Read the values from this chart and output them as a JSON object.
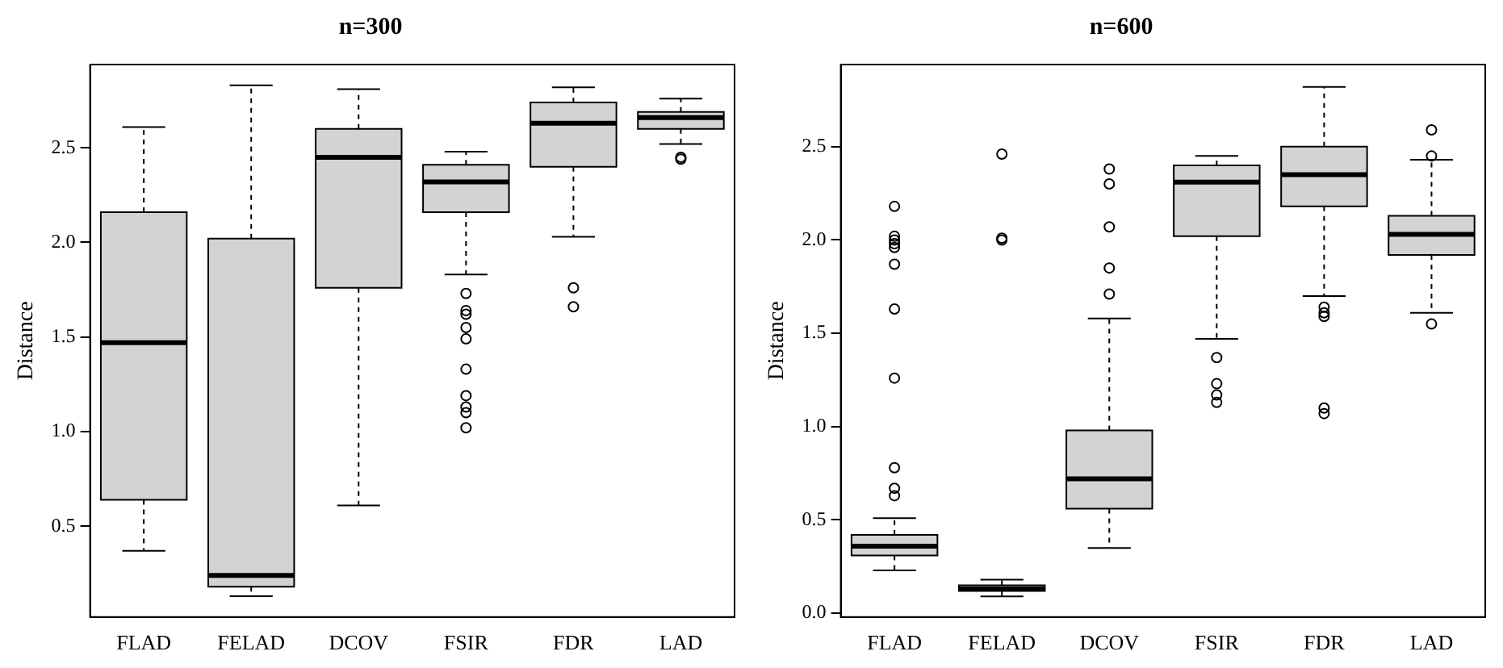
{
  "chart_data": [
    {
      "type": "box",
      "title": "n=300",
      "ylabel": "Distance",
      "categories": [
        "FLAD",
        "FELAD",
        "DCOV",
        "FSIR",
        "FDR",
        "LAD"
      ],
      "color": "#d3d3d3",
      "grid": false,
      "legend": false,
      "ylim": [
        0.02,
        2.94
      ],
      "yticks": [
        0.5,
        {
          "value": 1,
          "label": "1.0"
        },
        1.5,
        {
          "value": 2,
          "label": "2.0"
        },
        2.5
      ],
      "boxes": [
        {
          "low": 0.37,
          "q1": 0.64,
          "median": 1.47,
          "q3": 2.16,
          "high": 2.61
        },
        {
          "low": 0.13,
          "q1": 0.18,
          "median": 0.24,
          "q3": 2.02,
          "high": 2.83
        },
        {
          "low": 0.61,
          "q1": 1.76,
          "median": 2.45,
          "q3": 2.6,
          "high": 2.81
        },
        {
          "low": 1.83,
          "q1": 2.16,
          "median": 2.32,
          "q3": 2.41,
          "high": 2.48,
          "outliers": [
            1.73,
            1.64,
            1.62,
            1.55,
            1.49,
            1.33,
            1.19,
            1.13,
            1.1,
            1.02
          ]
        },
        {
          "low": 2.03,
          "q1": 2.4,
          "median": 2.63,
          "q3": 2.74,
          "high": 2.82,
          "outliers": [
            1.76,
            1.66
          ]
        },
        {
          "low": 2.52,
          "q1": 2.6,
          "median": 2.66,
          "q3": 2.69,
          "high": 2.76,
          "outliers": [
            2.45,
            2.44
          ]
        }
      ]
    },
    {
      "type": "box",
      "title": "n=600",
      "ylabel": "Distance",
      "categories": [
        "FLAD",
        "FELAD",
        "DCOV",
        "FSIR",
        "FDR",
        "LAD"
      ],
      "color": "#d3d3d3",
      "grid": false,
      "legend": false,
      "ylim": [
        -0.02,
        2.94
      ],
      "yticks": [
        {
          "value": 0,
          "label": "0.0"
        },
        0.5,
        {
          "value": 1,
          "label": "1.0"
        },
        1.5,
        {
          "value": 2,
          "label": "2.0"
        },
        2.5
      ],
      "boxes": [
        {
          "low": 0.23,
          "q1": 0.31,
          "median": 0.36,
          "q3": 0.42,
          "high": 0.51,
          "outliers": [
            2.18,
            2.02,
            2.0,
            1.98,
            1.96,
            1.87,
            1.63,
            1.26,
            0.78,
            0.67,
            0.63
          ]
        },
        {
          "low": 0.09,
          "q1": 0.12,
          "median": 0.13,
          "q3": 0.15,
          "high": 0.18,
          "outliers": [
            2.46,
            2.01,
            2.0
          ]
        },
        {
          "low": 0.35,
          "q1": 0.56,
          "median": 0.72,
          "q3": 0.98,
          "high": 1.58,
          "outliers": [
            2.38,
            2.3,
            2.07,
            1.85,
            1.71
          ]
        },
        {
          "low": 1.47,
          "q1": 2.02,
          "median": 2.31,
          "q3": 2.4,
          "high": 2.45,
          "outliers": [
            1.37,
            1.23,
            1.17,
            1.13
          ]
        },
        {
          "low": 1.7,
          "q1": 2.18,
          "median": 2.35,
          "q3": 2.5,
          "high": 2.82,
          "outliers": [
            1.64,
            1.61,
            1.59,
            1.1,
            1.07
          ]
        },
        {
          "low": 1.61,
          "q1": 1.92,
          "median": 2.03,
          "q3": 2.13,
          "high": 2.43,
          "outliers": [
            2.59,
            2.45,
            1.55
          ]
        }
      ]
    }
  ]
}
